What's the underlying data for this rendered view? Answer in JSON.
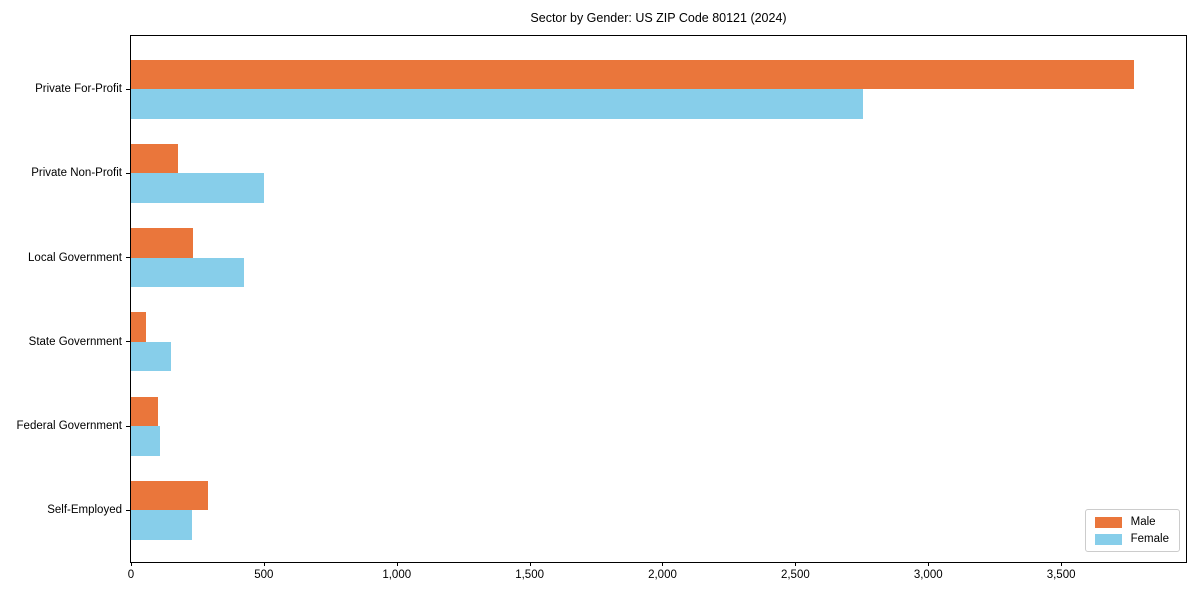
{
  "chart_data": {
    "type": "bar",
    "orientation": "horizontal",
    "title": "Sector by Gender: US ZIP Code 80121 (2024)",
    "categories": [
      "Private For-Profit",
      "Private Non-Profit",
      "Local Government",
      "State Government",
      "Federal Government",
      "Self-Employed"
    ],
    "series": [
      {
        "name": "Male",
        "color": "#ea763b",
        "values": [
          3775,
          175,
          235,
          55,
          100,
          290
        ]
      },
      {
        "name": "Female",
        "color": "#87ceea",
        "values": [
          2755,
          500,
          425,
          150,
          110,
          230
        ]
      }
    ],
    "xlabel": "",
    "ylabel": "",
    "xlim": [
      0,
      3970
    ],
    "xticks": {
      "values": [
        0,
        500,
        1000,
        1500,
        2000,
        2500,
        3000,
        3500
      ],
      "labels": [
        "0",
        "500",
        "1,000",
        "1,500",
        "2,000",
        "2,500",
        "3,000",
        "3,500"
      ]
    },
    "grid": false,
    "legend": {
      "position": "lower right",
      "entries": [
        "Male",
        "Female"
      ]
    },
    "background": "#ffffff",
    "spine_color": "#000000"
  }
}
